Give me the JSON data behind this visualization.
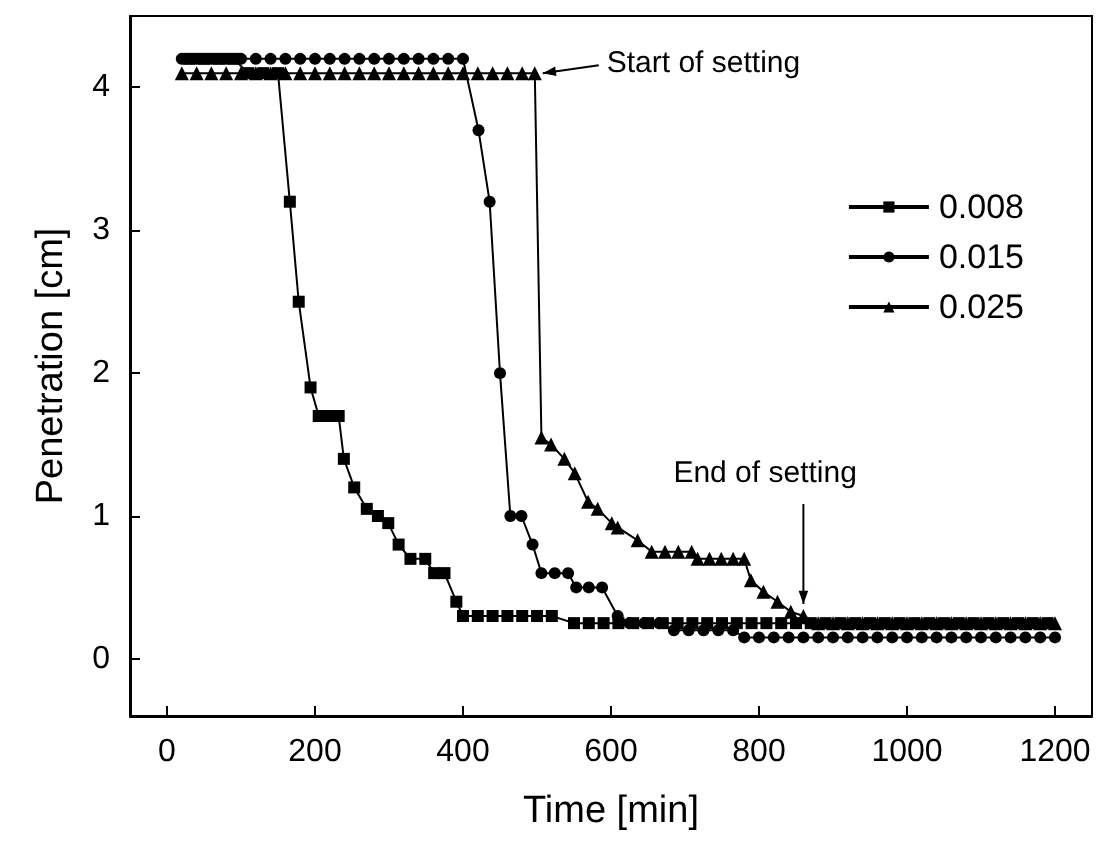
{
  "chart_data": {
    "type": "line",
    "xlabel": "Time [min]",
    "ylabel": "Penetration [cm]",
    "xlim": [
      -50,
      1250
    ],
    "ylim": [
      -0.4,
      4.5
    ],
    "xticks": [
      0,
      200,
      400,
      600,
      800,
      {
        "value": 1000,
        "label": "1000"
      },
      {
        "value": 1200,
        "label": "1200"
      }
    ],
    "yticks": [
      0,
      1,
      2,
      3,
      4
    ],
    "grid": false,
    "legend": "top right",
    "line_style": "solid",
    "series": [
      {
        "name": "0.008",
        "color": "#000000",
        "marker": "square",
        "x": [
          30,
          50,
          70,
          90,
          110,
          130,
          150,
          166,
          178,
          194,
          205,
          220,
          232,
          239,
          253,
          270,
          285,
          299,
          313,
          329,
          349,
          361,
          375,
          391,
          400,
          420,
          440,
          460,
          480,
          500,
          520,
          550,
          570,
          590,
          610,
          630,
          650,
          670,
          690,
          710,
          730,
          750,
          770,
          790,
          810,
          830,
          850,
          870,
          890,
          910,
          930,
          950,
          970,
          990,
          1010,
          1030,
          1050,
          1070,
          1090,
          1110,
          1130,
          1150,
          1170,
          1190
        ],
        "values": [
          4.2,
          4.2,
          4.2,
          4.2,
          4.1,
          4.1,
          4.1,
          3.2,
          2.5,
          1.9,
          1.7,
          1.7,
          1.7,
          1.4,
          1.2,
          1.05,
          1.0,
          0.95,
          0.8,
          0.7,
          0.7,
          0.6,
          0.6,
          0.4,
          0.3,
          0.3,
          0.3,
          0.3,
          0.3,
          0.3,
          0.3,
          0.25,
          0.25,
          0.25,
          0.25,
          0.25,
          0.25,
          0.25,
          0.25,
          0.25,
          0.25,
          0.25,
          0.25,
          0.25,
          0.25,
          0.25,
          0.25,
          0.25,
          0.25,
          0.25,
          0.25,
          0.25,
          0.25,
          0.25,
          0.25,
          0.25,
          0.25,
          0.25,
          0.25,
          0.25,
          0.25,
          0.25,
          0.25,
          0.25
        ]
      },
      {
        "name": "0.015",
        "color": "#000000",
        "marker": "circle",
        "x": [
          20,
          40,
          60,
          80,
          100,
          120,
          140,
          160,
          180,
          200,
          220,
          240,
          260,
          280,
          300,
          320,
          340,
          360,
          380,
          400,
          421,
          436,
          450,
          464,
          479,
          494,
          506,
          524,
          542,
          553,
          570,
          588,
          609,
          625,
          645,
          665,
          685,
          705,
          725,
          745,
          765,
          780,
          800,
          820,
          840,
          860,
          880,
          900,
          920,
          940,
          960,
          980,
          1000,
          1020,
          1040,
          1060,
          1080,
          1100,
          1120,
          1140,
          1160,
          1180,
          1200
        ],
        "values": [
          4.2,
          4.2,
          4.2,
          4.2,
          4.2,
          4.2,
          4.2,
          4.2,
          4.2,
          4.2,
          4.2,
          4.2,
          4.2,
          4.2,
          4.2,
          4.2,
          4.2,
          4.2,
          4.2,
          4.2,
          3.7,
          3.2,
          2.0,
          1.0,
          1.0,
          0.8,
          0.6,
          0.6,
          0.6,
          0.5,
          0.5,
          0.5,
          0.3,
          0.25,
          0.25,
          0.25,
          0.2,
          0.2,
          0.2,
          0.2,
          0.2,
          0.15,
          0.15,
          0.15,
          0.15,
          0.15,
          0.15,
          0.15,
          0.15,
          0.15,
          0.15,
          0.15,
          0.15,
          0.15,
          0.15,
          0.15,
          0.15,
          0.15,
          0.15,
          0.15,
          0.15,
          0.15,
          0.15
        ]
      },
      {
        "name": "0.025",
        "color": "#000000",
        "marker": "triangle",
        "x": [
          20,
          40,
          60,
          80,
          100,
          120,
          140,
          160,
          180,
          200,
          220,
          240,
          260,
          280,
          300,
          320,
          340,
          360,
          380,
          400,
          420,
          440,
          460,
          480,
          497,
          506,
          519,
          537,
          551,
          569,
          582,
          601,
          609,
          636,
          655,
          673,
          691,
          709,
          717,
          733,
          749,
          765,
          780,
          789,
          806,
          825,
          843,
          860,
          880,
          900,
          920,
          940,
          960,
          980,
          1000,
          1020,
          1040,
          1060,
          1080,
          1100,
          1120,
          1140,
          1160,
          1180,
          1200
        ],
        "values": [
          4.1,
          4.1,
          4.1,
          4.1,
          4.1,
          4.1,
          4.1,
          4.1,
          4.1,
          4.1,
          4.1,
          4.1,
          4.1,
          4.1,
          4.1,
          4.1,
          4.1,
          4.1,
          4.1,
          4.1,
          4.1,
          4.1,
          4.1,
          4.1,
          4.1,
          1.55,
          1.5,
          1.4,
          1.3,
          1.1,
          1.05,
          0.95,
          0.92,
          0.83,
          0.75,
          0.75,
          0.75,
          0.75,
          0.7,
          0.7,
          0.7,
          0.7,
          0.7,
          0.55,
          0.47,
          0.4,
          0.33,
          0.3,
          0.25,
          0.25,
          0.25,
          0.25,
          0.25,
          0.25,
          0.25,
          0.25,
          0.25,
          0.25,
          0.25,
          0.25,
          0.25,
          0.25,
          0.25,
          0.25,
          0.25
        ]
      }
    ],
    "annotations": [
      {
        "text": "Start of setting",
        "x": 497,
        "y": 4.1
      },
      {
        "text": "End of setting",
        "x": 860,
        "y": 0.3
      }
    ]
  }
}
